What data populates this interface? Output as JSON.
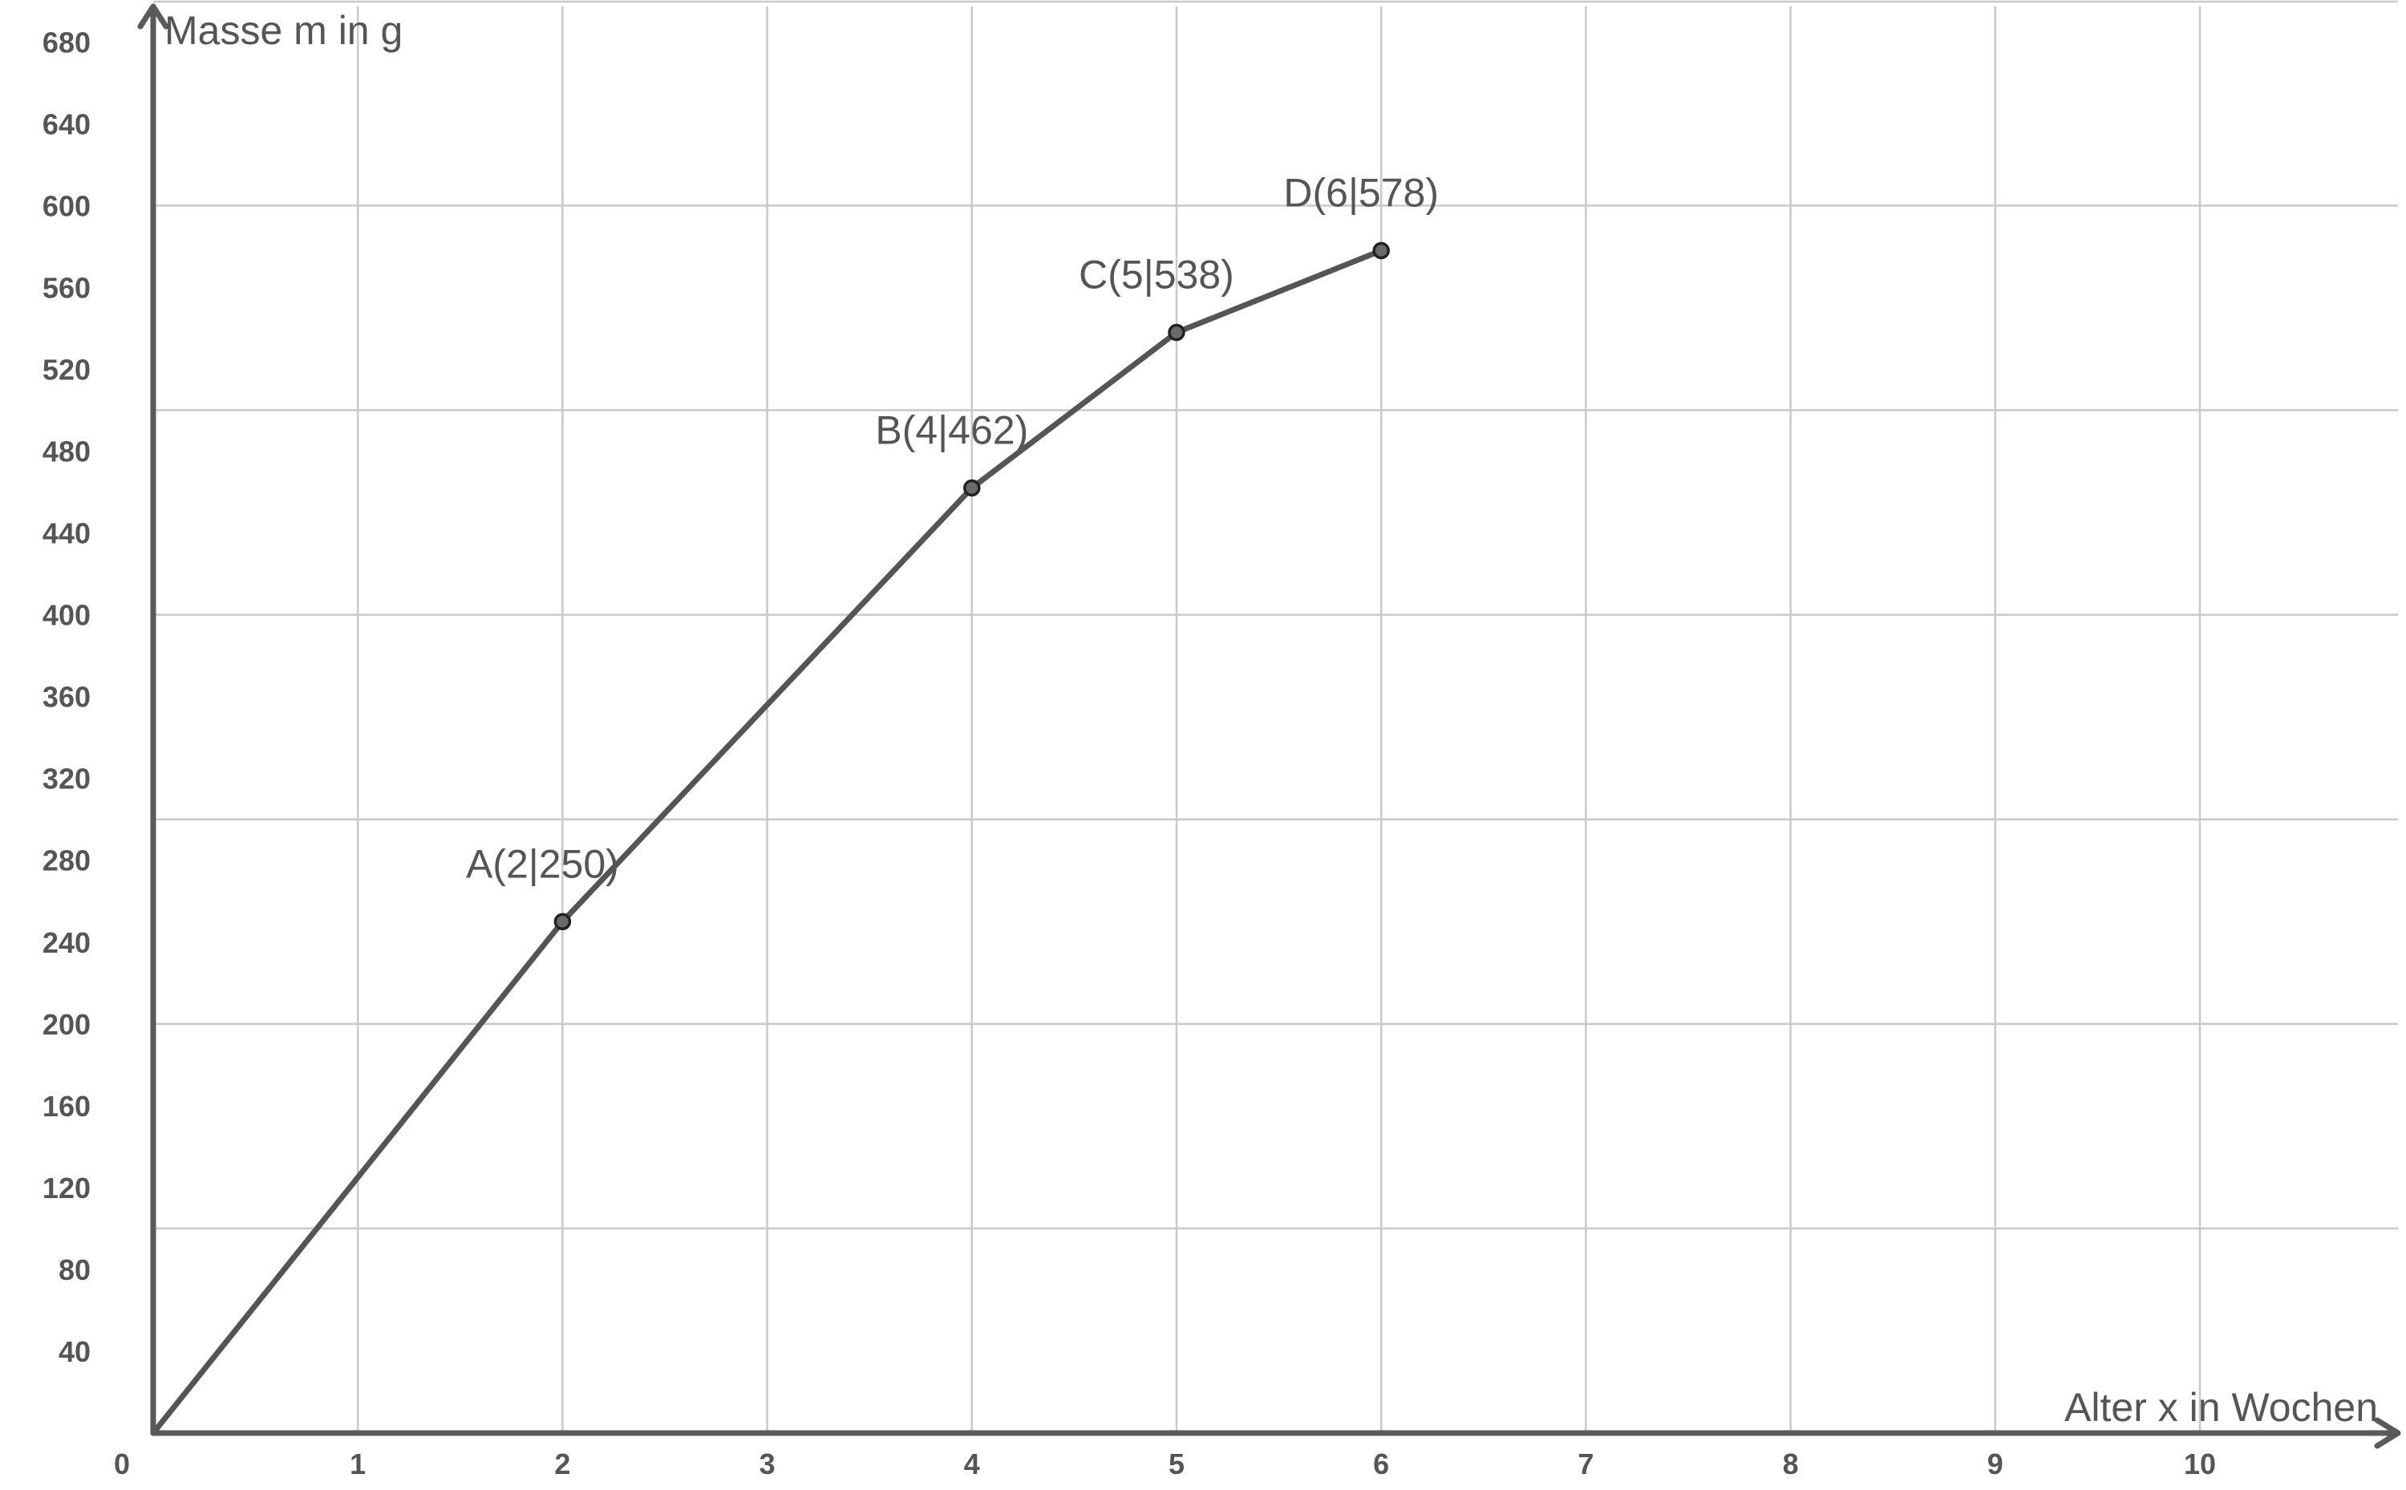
{
  "chart_data": {
    "type": "line",
    "xlabel": "Alter x in Wochen",
    "ylabel": "Masse m in g",
    "xlim": [
      0,
      11
    ],
    "ylim": [
      0,
      700
    ],
    "x_ticks": [
      0,
      1,
      2,
      3,
      4,
      5,
      6,
      7,
      8,
      9,
      10
    ],
    "y_ticks": [
      40,
      80,
      120,
      160,
      200,
      240,
      280,
      320,
      360,
      400,
      440,
      480,
      520,
      560,
      600,
      640,
      680
    ],
    "x_tick_labels": [
      "0",
      "1",
      "2",
      "3",
      "4",
      "5",
      "6",
      "7",
      "8",
      "9",
      "10"
    ],
    "y_tick_labels": [
      "40",
      "80",
      "120",
      "160",
      "200",
      "240",
      "280",
      "320",
      "360",
      "400",
      "440",
      "480",
      "520",
      "560",
      "600",
      "640",
      "680"
    ],
    "grid": true,
    "grid_x_step": 1,
    "grid_y_step": 100,
    "series": [
      {
        "x": [
          0,
          2,
          4,
          5,
          6
        ],
        "y": [
          0,
          250,
          462,
          538,
          578
        ]
      }
    ],
    "points": [
      {
        "label": "A(2|250)",
        "x": 2,
        "y": 250
      },
      {
        "label": "B(4|462)",
        "x": 4,
        "y": 462
      },
      {
        "label": "C(5|538)",
        "x": 5,
        "y": 538
      },
      {
        "label": "D(6|578)",
        "x": 6,
        "y": 578
      }
    ],
    "colors": {
      "line": "#555555",
      "grid": "#c9c9c9",
      "axis": "#5a5a5a"
    }
  }
}
